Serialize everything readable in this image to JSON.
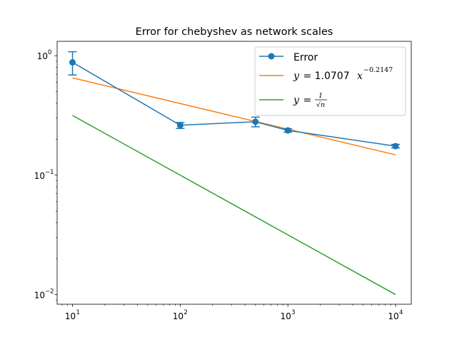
{
  "chart_data": {
    "type": "line",
    "title": "Error for chebyshev as network scales",
    "xlabel": "",
    "ylabel": "",
    "xscale": "log",
    "yscale": "log",
    "xlim": [
      7.2,
      14000
    ],
    "ylim": [
      0.0083,
      1.32
    ],
    "x_ticks": [
      {
        "value": 10,
        "base": "10",
        "exp": "1"
      },
      {
        "value": 100,
        "base": "10",
        "exp": "2"
      },
      {
        "value": 1000,
        "base": "10",
        "exp": "3"
      },
      {
        "value": 10000,
        "base": "10",
        "exp": "4"
      }
    ],
    "y_ticks": [
      {
        "value": 0.01,
        "base": "10",
        "exp": "−2"
      },
      {
        "value": 0.1,
        "base": "10",
        "exp": "−1"
      },
      {
        "value": 1,
        "base": "10",
        "exp": "0"
      }
    ],
    "grid": false,
    "legend_position": "top-right",
    "series": [
      {
        "name": "Error",
        "color": "#1f77b4",
        "marker": "circle",
        "x": [
          10,
          100,
          500,
          1000,
          10000
        ],
        "values": [
          0.88,
          0.262,
          0.28,
          0.237,
          0.175
        ],
        "err_low": [
          0.69,
          0.246,
          0.254,
          0.229,
          0.169
        ],
        "err_high": [
          1.08,
          0.276,
          0.306,
          0.245,
          0.181
        ]
      },
      {
        "name_parts": {
          "y": "y",
          "eq": " = 1.0707",
          "x": "x",
          "sup": "−0.2147"
        },
        "color": "#ff7f0e",
        "x": [
          10,
          10000
        ],
        "values": [
          0.6528,
          0.1479
        ]
      },
      {
        "name_parts": {
          "y": "y",
          "eq": " = ",
          "num": "1",
          "den": "√n"
        },
        "color": "#2ca02c",
        "x": [
          10,
          10000
        ],
        "values": [
          0.3162,
          0.01
        ]
      }
    ]
  }
}
